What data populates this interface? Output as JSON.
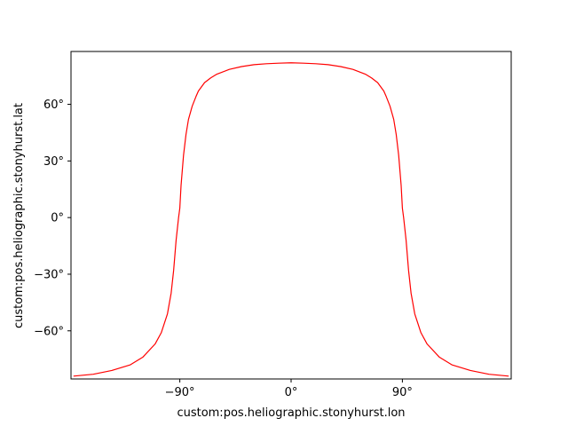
{
  "chart_data": {
    "type": "line",
    "xlabel": "custom:pos.heliographic.stonyhurst.lon",
    "ylabel": "custom:pos.heliographic.stonyhurst.lat",
    "xlim": [
      -178,
      178
    ],
    "ylim": [
      -85.5,
      88
    ],
    "x_ticks": [
      {
        "value": -90,
        "label": "−90°"
      },
      {
        "value": 0,
        "label": "0°"
      },
      {
        "value": 90,
        "label": "90°"
      }
    ],
    "y_ticks": [
      {
        "value": -60,
        "label": "−60°"
      },
      {
        "value": -30,
        "label": "−30°"
      },
      {
        "value": 0,
        "label": "0°"
      },
      {
        "value": 30,
        "label": "30°"
      },
      {
        "value": 60,
        "label": "60°"
      }
    ],
    "grid": false,
    "series": [
      {
        "color": "#ff0000",
        "x": [
          -176,
          -160,
          -145,
          -130,
          -120,
          -110,
          -105,
          -100,
          -97,
          -95,
          -93,
          -91,
          -90,
          -89,
          -87,
          -85,
          -83,
          -80,
          -77,
          -75,
          -70,
          -65,
          -60,
          -50,
          -40,
          -30,
          -20,
          -10,
          0,
          10,
          20,
          30,
          40,
          50,
          60,
          65,
          70,
          75,
          77,
          80,
          83,
          85,
          87,
          89,
          90,
          91,
          93,
          95,
          97,
          100,
          105,
          110,
          120,
          130,
          145,
          160,
          176
        ],
        "y": [
          -84,
          -83,
          -81,
          -78,
          -74,
          -67,
          -61,
          -51,
          -40,
          -28,
          -12,
          0,
          5,
          17,
          33,
          44,
          52,
          59,
          64,
          67,
          71.5,
          74,
          76,
          78.5,
          80,
          81,
          81.5,
          81.8,
          82,
          81.8,
          81.5,
          81,
          80,
          78.5,
          76,
          74,
          71.5,
          67,
          64,
          59,
          52,
          44,
          33,
          17,
          5,
          0,
          -12,
          -28,
          -40,
          -51,
          -61,
          -67,
          -74,
          -78,
          -81,
          -83,
          -84
        ]
      }
    ]
  }
}
